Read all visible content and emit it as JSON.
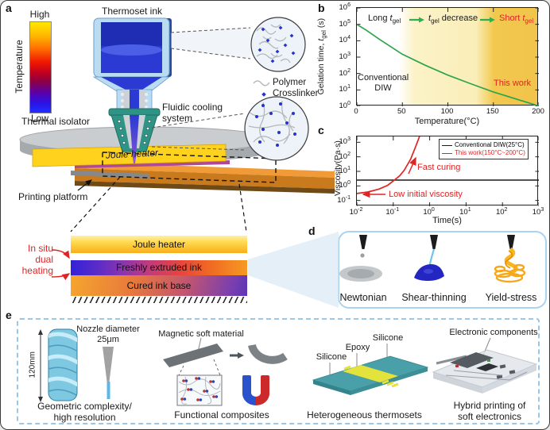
{
  "figure": {
    "panels": {
      "a": "a",
      "b": "b",
      "c": "c",
      "d": "d",
      "e": "e"
    }
  },
  "panel_a": {
    "colorbar": {
      "high": "High",
      "low": "Low",
      "axis_label": "Temperature"
    },
    "thermoset_ink": "Thermoset ink",
    "thermal_isolator": "Thermal isolator",
    "fluidic_cooling_line1": "Fluidic cooling",
    "fluidic_cooling_line2": "system",
    "joule_heater": "Joule heater",
    "printing_platform": "Printing platform",
    "legend": {
      "polymer": "Polymer",
      "crosslinker": "Crosslinker"
    },
    "inset": {
      "joule_heater": "Joule heater",
      "freshly_extruded_ink": "Freshly extruded ink",
      "cured_ink_base": "Cured ink base",
      "in_situ_line1": "In situ",
      "in_situ_line2": "dual",
      "in_situ_line3": "heating"
    }
  },
  "panel_b": {
    "ylabel_prefix": "Gelation time, ",
    "ylabel_italic": "t",
    "ylabel_sub": "gel",
    "ylabel_suffix": " (s)",
    "xlabel": "Temperature(°C)",
    "ann_long_prefix": "Long ",
    "ann_tgel_italic": "t",
    "ann_tgel_sub": "gel",
    "ann_decrease_suffix": " decrease",
    "ann_short_prefix": "Short ",
    "conventional_line1": "Conventional",
    "conventional_line2": "DIW",
    "this_work": "This work",
    "xticks": [
      0,
      50,
      100,
      150,
      200
    ],
    "ytick_exponents": [
      6,
      5,
      4,
      3,
      2,
      1,
      0
    ]
  },
  "panel_c": {
    "ylabel": "Viscosity(Pa·s)",
    "xlabel": "Time(s)",
    "legend": [
      "Conventional DIW(25°C)",
      "This work(150°C~200°C)"
    ],
    "ann_fast": "Fast curing",
    "ann_low": "Low initial viscosity",
    "xtick_exponents": [
      -2,
      -1,
      0,
      1,
      2,
      3
    ],
    "ytick_exponents": [
      3,
      2,
      1,
      0,
      -1
    ]
  },
  "panel_d": {
    "captions": [
      "Newtonian",
      "Shear-thinning",
      "Yield-stress"
    ]
  },
  "panel_e": {
    "dim_label": "120mm",
    "nozzle_line1": "Nozzle diameter",
    "nozzle_line2": "25μm",
    "caption1_line1": "Geometric complexity/",
    "caption1_line2": "high resolution",
    "magnetic_label": "Magnetic soft material",
    "caption2": "Functional composites",
    "silicone_left": "Silicone",
    "epoxy": "Epoxy",
    "silicone_right": "Silicone",
    "caption3": "Heterogeneous thermosets",
    "electronic_label": "Electronic components",
    "caption4_line1": "Hybrid printing of",
    "caption4_line2": "soft electronics"
  },
  "colors": {
    "accent_green": "#2da44e",
    "accent_red": "#e02424",
    "heater_yellow": "#ffd21e",
    "zone_amber": "#f2c84e",
    "panel_box_blue": "#a9d3ee"
  },
  "chart_data": [
    {
      "id": "panel_b",
      "type": "line",
      "xlabel": "Temperature(°C)",
      "ylabel": "Gelation time, t_gel (s)",
      "x_range": [
        0,
        200
      ],
      "y_scale": "log",
      "y_range": [
        1,
        1000000
      ],
      "x_ticks": [
        0,
        50,
        100,
        150,
        200
      ],
      "y_ticks": [
        1,
        10,
        100,
        1000,
        10000,
        100000,
        1000000
      ],
      "grid": false,
      "series": [
        {
          "name": "Gelation time vs temperature",
          "color": "#2da44e",
          "points": [
            [
              0,
              100000
            ],
            [
              10,
              45000
            ],
            [
              25,
              12000
            ],
            [
              50,
              1500
            ],
            [
              75,
              320
            ],
            [
              100,
              80
            ],
            [
              125,
              24
            ],
            [
              150,
              7.5
            ],
            [
              175,
              2.8
            ],
            [
              200,
              1.05
            ]
          ]
        }
      ],
      "annotations": [
        "Long t_gel",
        "t_gel decrease",
        "Short t_gel",
        "Conventional DIW",
        "This work"
      ],
      "background_zones": [
        {
          "x_from": 0,
          "x_to": 55,
          "color": "#ffffff",
          "label": "Conventional DIW"
        },
        {
          "x_from": 55,
          "x_to": 148,
          "color": "#fbf2c8",
          "label": "t_gel decrease"
        },
        {
          "x_from": 148,
          "x_to": 200,
          "color": "#f2c84e",
          "label": "This work"
        }
      ]
    },
    {
      "id": "panel_c",
      "type": "line",
      "xlabel": "Time(s)",
      "ylabel": "Viscosity(Pa·s)",
      "x_scale": "log",
      "x_range": [
        0.01,
        1000
      ],
      "y_scale": "log",
      "y_axis_ticks": [
        0.1,
        1,
        10,
        100,
        1000
      ],
      "legend_position": "top-right",
      "series": [
        {
          "name": "Conventional DIW(25°C)",
          "color": "#1a1a1a",
          "points": [
            [
              0.01,
              2.5
            ],
            [
              1000,
              2.5
            ]
          ]
        },
        {
          "name": "This work(150°C~200°C)",
          "color": "#e02424",
          "points": [
            [
              0.01,
              0.3
            ],
            [
              0.02,
              0.38
            ],
            [
              0.04,
              0.6
            ],
            [
              0.07,
              1.1
            ],
            [
              0.1,
              2.2
            ],
            [
              0.15,
              5
            ],
            [
              0.2,
              12
            ],
            [
              0.3,
              70
            ],
            [
              0.4,
              420
            ],
            [
              0.5,
              1800
            ],
            [
              0.58,
              5000
            ]
          ]
        }
      ],
      "annotations": [
        "Fast curing",
        "Low initial viscosity"
      ]
    }
  ]
}
